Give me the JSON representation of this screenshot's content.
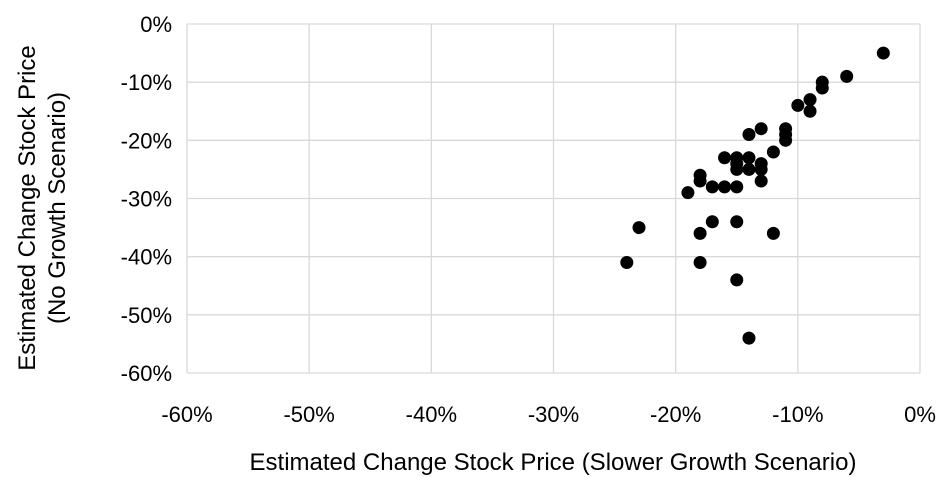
{
  "chart_data": {
    "type": "scatter",
    "title": "",
    "xlabel": "Estimated Change Stock Price (Slower Growth Scenario)",
    "ylabel_lines": [
      "Estimated Change Stock Price",
      "(No Growth Scenario)"
    ],
    "xlim": [
      -0.6,
      0
    ],
    "ylim": [
      -0.6,
      0
    ],
    "x_ticks": [
      -0.6,
      -0.5,
      -0.4,
      -0.3,
      -0.2,
      -0.1,
      0
    ],
    "x_tick_labels": [
      "-60%",
      "-50%",
      "-40%",
      "-30%",
      "-20%",
      "-10%",
      "0%"
    ],
    "y_ticks": [
      0,
      -0.1,
      -0.2,
      -0.3,
      -0.4,
      -0.5,
      -0.6
    ],
    "y_tick_labels": [
      "0%",
      "-10%",
      "-20%",
      "-30%",
      "-40%",
      "-50%",
      "-60%"
    ],
    "grid": true,
    "marker_color": "#000000",
    "grid_color": "#d9d9d9",
    "points": [
      {
        "x": -0.03,
        "y": -0.05
      },
      {
        "x": -0.06,
        "y": -0.09
      },
      {
        "x": -0.08,
        "y": -0.1
      },
      {
        "x": -0.08,
        "y": -0.11
      },
      {
        "x": -0.09,
        "y": -0.13
      },
      {
        "x": -0.09,
        "y": -0.15
      },
      {
        "x": -0.1,
        "y": -0.14
      },
      {
        "x": -0.11,
        "y": -0.18
      },
      {
        "x": -0.11,
        "y": -0.19
      },
      {
        "x": -0.11,
        "y": -0.2
      },
      {
        "x": -0.12,
        "y": -0.22
      },
      {
        "x": -0.13,
        "y": -0.18
      },
      {
        "x": -0.13,
        "y": -0.24
      },
      {
        "x": -0.13,
        "y": -0.25
      },
      {
        "x": -0.13,
        "y": -0.27
      },
      {
        "x": -0.14,
        "y": -0.19
      },
      {
        "x": -0.14,
        "y": -0.23
      },
      {
        "x": -0.14,
        "y": -0.25
      },
      {
        "x": -0.15,
        "y": -0.23
      },
      {
        "x": -0.15,
        "y": -0.24
      },
      {
        "x": -0.15,
        "y": -0.25
      },
      {
        "x": -0.15,
        "y": -0.28
      },
      {
        "x": -0.16,
        "y": -0.23
      },
      {
        "x": -0.16,
        "y": -0.28
      },
      {
        "x": -0.17,
        "y": -0.28
      },
      {
        "x": -0.18,
        "y": -0.26
      },
      {
        "x": -0.18,
        "y": -0.27
      },
      {
        "x": -0.19,
        "y": -0.29
      },
      {
        "x": -0.17,
        "y": -0.34
      },
      {
        "x": -0.15,
        "y": -0.34
      },
      {
        "x": -0.18,
        "y": -0.36
      },
      {
        "x": -0.12,
        "y": -0.36
      },
      {
        "x": -0.23,
        "y": -0.35
      },
      {
        "x": -0.24,
        "y": -0.41
      },
      {
        "x": -0.18,
        "y": -0.41
      },
      {
        "x": -0.15,
        "y": -0.44
      },
      {
        "x": -0.14,
        "y": -0.54
      }
    ]
  }
}
